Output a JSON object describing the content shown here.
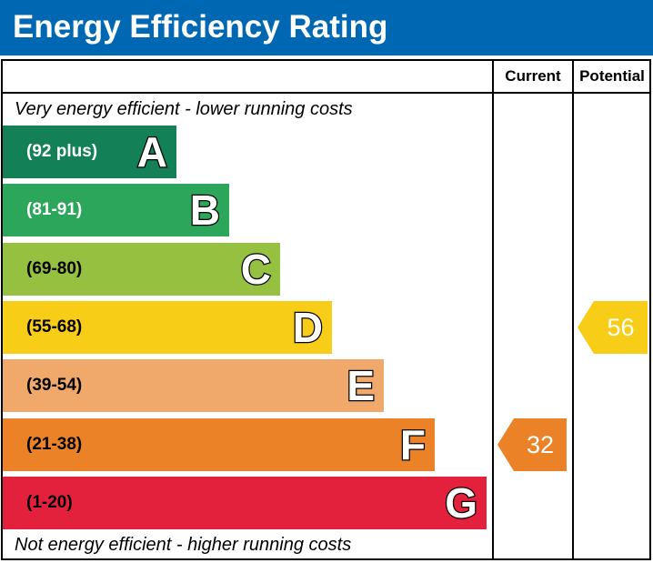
{
  "header": {
    "title": "Energy Efficiency Rating"
  },
  "columns": {
    "current": "Current",
    "potential": "Potential"
  },
  "captions": {
    "top": "Very energy efficient - lower running costs",
    "bottom": "Not energy efficient - higher running costs"
  },
  "chart_data": {
    "type": "bar",
    "title": "Energy Efficiency Rating",
    "bands": [
      {
        "letter": "A",
        "range": "(92 plus)",
        "color": "#138057"
      },
      {
        "letter": "B",
        "range": "(81-91)",
        "color": "#2ca65a"
      },
      {
        "letter": "C",
        "range": "(69-80)",
        "color": "#95c040"
      },
      {
        "letter": "D",
        "range": "(55-68)",
        "color": "#f7cd18"
      },
      {
        "letter": "E",
        "range": "(39-54)",
        "color": "#f1a96b"
      },
      {
        "letter": "F",
        "range": "(21-38)",
        "color": "#ec8228"
      },
      {
        "letter": "G",
        "range": "(1-20)",
        "color": "#e3213d"
      }
    ],
    "current": {
      "value": 32,
      "band": "F",
      "color": "#ec8228"
    },
    "potential": {
      "value": 56,
      "band": "D",
      "color": "#f7cd18"
    }
  }
}
